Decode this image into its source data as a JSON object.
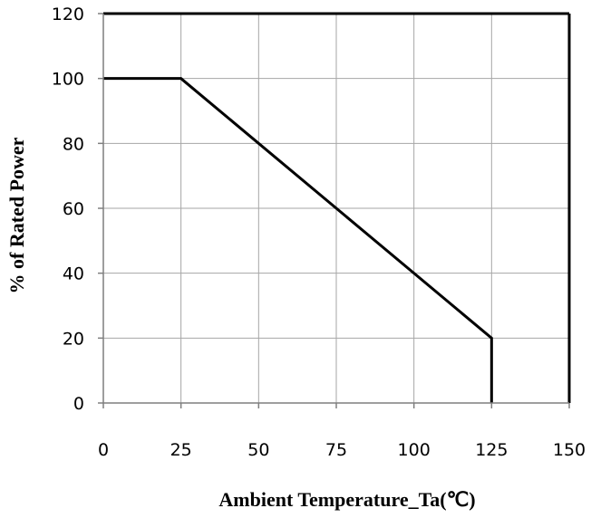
{
  "chart_data": {
    "type": "line",
    "title": "",
    "xlabel": "Ambient Temperature_Ta(℃)",
    "ylabel": "% of Rated Power",
    "xlim": [
      0,
      150
    ],
    "ylim": [
      0,
      120
    ],
    "x_ticks": [
      0,
      25,
      50,
      75,
      100,
      125,
      150
    ],
    "y_ticks": [
      0,
      20,
      40,
      60,
      80,
      100,
      120
    ],
    "grid": true,
    "series": [
      {
        "x": [
          0,
          25,
          125,
          125
        ],
        "y": [
          100,
          100,
          20,
          0
        ],
        "color": "#000000"
      }
    ]
  }
}
